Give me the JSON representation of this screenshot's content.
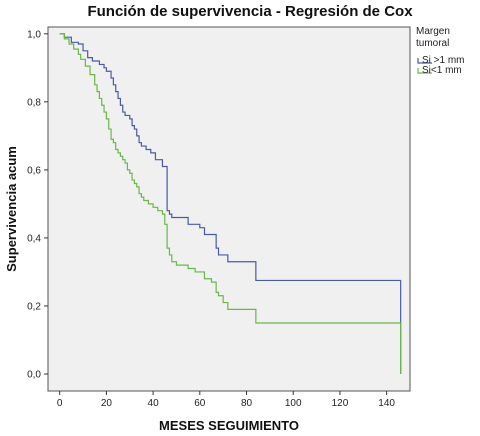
{
  "chart_data": {
    "type": "line",
    "title": "Función de supervivencia - Regresión de Cox",
    "xlabel": "MESES SEGUIMIENTO",
    "ylabel": "Supervivencia acum",
    "xlim": [
      -5,
      150
    ],
    "ylim": [
      -0.05,
      1.02
    ],
    "x_ticks": [
      0,
      20,
      40,
      60,
      80,
      100,
      120,
      140
    ],
    "x_tick_labels": [
      "0",
      "20",
      "40",
      "60",
      "80",
      "100",
      "120",
      "140"
    ],
    "y_ticks": [
      0.0,
      0.2,
      0.4,
      0.6,
      0.8,
      1.0
    ],
    "y_tick_labels": [
      "0,0",
      "0,2",
      "0,4",
      "0,6",
      "0,8",
      "1,0"
    ],
    "grid": false,
    "plot_background": "#f0f0f0",
    "legend": {
      "title_lines": [
        "Margen",
        "tumoral"
      ],
      "position": "right"
    },
    "step": true,
    "series": [
      {
        "name": "Si >1 mm",
        "color": "#4a5aa8",
        "points": [
          [
            0,
            1.0
          ],
          [
            2,
            0.99
          ],
          [
            5,
            0.975
          ],
          [
            8,
            0.97
          ],
          [
            10,
            0.95
          ],
          [
            12,
            0.93
          ],
          [
            14,
            0.92
          ],
          [
            17,
            0.91
          ],
          [
            19,
            0.9
          ],
          [
            20,
            0.89
          ],
          [
            22,
            0.87
          ],
          [
            23,
            0.85
          ],
          [
            24,
            0.83
          ],
          [
            25,
            0.81
          ],
          [
            26,
            0.79
          ],
          [
            27,
            0.77
          ],
          [
            28,
            0.76
          ],
          [
            30,
            0.75
          ],
          [
            31,
            0.73
          ],
          [
            32,
            0.72
          ],
          [
            33,
            0.7
          ],
          [
            34,
            0.68
          ],
          [
            35,
            0.67
          ],
          [
            37,
            0.66
          ],
          [
            39,
            0.65
          ],
          [
            41,
            0.63
          ],
          [
            44,
            0.61
          ],
          [
            46,
            0.48
          ],
          [
            47,
            0.47
          ],
          [
            48,
            0.46
          ],
          [
            55,
            0.44
          ],
          [
            60,
            0.43
          ],
          [
            62,
            0.41
          ],
          [
            67,
            0.37
          ],
          [
            68,
            0.35
          ],
          [
            72,
            0.33
          ],
          [
            84,
            0.275
          ],
          [
            146,
            0.275
          ],
          [
            146,
            0.0
          ]
        ]
      },
      {
        "name": "Si<1 mm",
        "color": "#6ab84a",
        "points": [
          [
            0,
            1.0
          ],
          [
            2,
            0.985
          ],
          [
            4,
            0.97
          ],
          [
            6,
            0.955
          ],
          [
            8,
            0.94
          ],
          [
            9,
            0.925
          ],
          [
            11,
            0.905
          ],
          [
            13,
            0.88
          ],
          [
            15,
            0.85
          ],
          [
            16,
            0.83
          ],
          [
            17,
            0.81
          ],
          [
            18,
            0.79
          ],
          [
            19,
            0.77
          ],
          [
            20,
            0.75
          ],
          [
            21,
            0.72
          ],
          [
            22,
            0.69
          ],
          [
            23,
            0.68
          ],
          [
            24,
            0.66
          ],
          [
            25,
            0.65
          ],
          [
            26,
            0.64
          ],
          [
            27,
            0.63
          ],
          [
            28,
            0.62
          ],
          [
            29,
            0.6
          ],
          [
            30,
            0.59
          ],
          [
            31,
            0.57
          ],
          [
            32,
            0.56
          ],
          [
            33,
            0.55
          ],
          [
            34,
            0.53
          ],
          [
            35,
            0.52
          ],
          [
            36,
            0.51
          ],
          [
            38,
            0.5
          ],
          [
            40,
            0.49
          ],
          [
            42,
            0.48
          ],
          [
            44,
            0.47
          ],
          [
            45,
            0.44
          ],
          [
            46,
            0.37
          ],
          [
            47,
            0.35
          ],
          [
            48,
            0.33
          ],
          [
            50,
            0.32
          ],
          [
            55,
            0.31
          ],
          [
            58,
            0.3
          ],
          [
            62,
            0.28
          ],
          [
            65,
            0.27
          ],
          [
            67,
            0.24
          ],
          [
            68,
            0.23
          ],
          [
            70,
            0.21
          ],
          [
            72,
            0.19
          ],
          [
            84,
            0.15
          ],
          [
            146,
            0.15
          ],
          [
            146,
            0.0
          ]
        ]
      }
    ]
  }
}
